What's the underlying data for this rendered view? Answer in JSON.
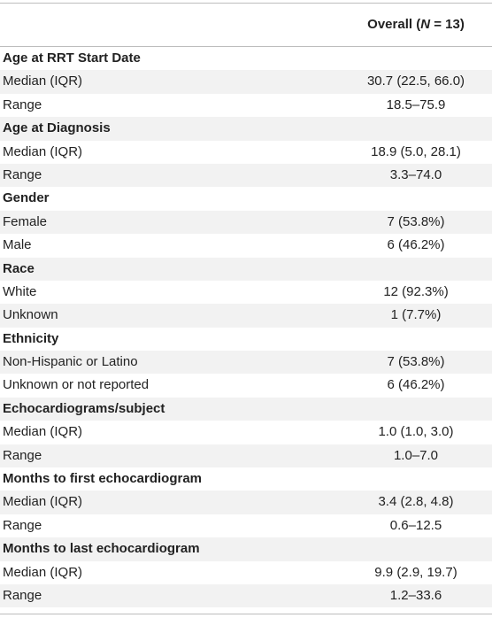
{
  "table": {
    "header": {
      "label": "",
      "overall_prefix": "Overall (",
      "overall_n": "N",
      "overall_suffix": " = 13)"
    },
    "rows": [
      {
        "type": "section",
        "label": "Age at RRT Start Date",
        "value": ""
      },
      {
        "type": "data",
        "label": "Median (IQR)",
        "value": "30.7 (22.5, 66.0)"
      },
      {
        "type": "data",
        "label": "Range",
        "value": "18.5–75.9"
      },
      {
        "type": "section",
        "label": "Age at Diagnosis",
        "value": ""
      },
      {
        "type": "data",
        "label": "Median (IQR)",
        "value": "18.9 (5.0, 28.1)"
      },
      {
        "type": "data",
        "label": "Range",
        "value": "3.3–74.0"
      },
      {
        "type": "section",
        "label": "Gender",
        "value": ""
      },
      {
        "type": "data",
        "label": "Female",
        "value": "7 (53.8%)"
      },
      {
        "type": "data",
        "label": "Male",
        "value": "6 (46.2%)"
      },
      {
        "type": "section",
        "label": "Race",
        "value": ""
      },
      {
        "type": "data",
        "label": "White",
        "value": "12 (92.3%)"
      },
      {
        "type": "data",
        "label": "Unknown",
        "value": "1 (7.7%)"
      },
      {
        "type": "section",
        "label": "Ethnicity",
        "value": ""
      },
      {
        "type": "data",
        "label": "Non-Hispanic or Latino",
        "value": "7 (53.8%)"
      },
      {
        "type": "data",
        "label": "Unknown or not reported",
        "value": "6 (46.2%)"
      },
      {
        "type": "section",
        "label": "Echocardiograms/subject",
        "value": ""
      },
      {
        "type": "data",
        "label": "Median (IQR)",
        "value": "1.0 (1.0, 3.0)"
      },
      {
        "type": "data",
        "label": "Range",
        "value": "1.0–7.0"
      },
      {
        "type": "section",
        "label": "Months to first echocardiogram",
        "value": ""
      },
      {
        "type": "data",
        "label": "Median (IQR)",
        "value": "3.4 (2.8, 4.8)"
      },
      {
        "type": "data",
        "label": "Range",
        "value": "0.6–12.5"
      },
      {
        "type": "section",
        "label": "Months to last echocardiogram",
        "value": ""
      },
      {
        "type": "data",
        "label": "Median (IQR)",
        "value": "9.9 (2.9, 19.7)"
      },
      {
        "type": "data",
        "label": "Range",
        "value": "1.2–33.6"
      }
    ]
  }
}
